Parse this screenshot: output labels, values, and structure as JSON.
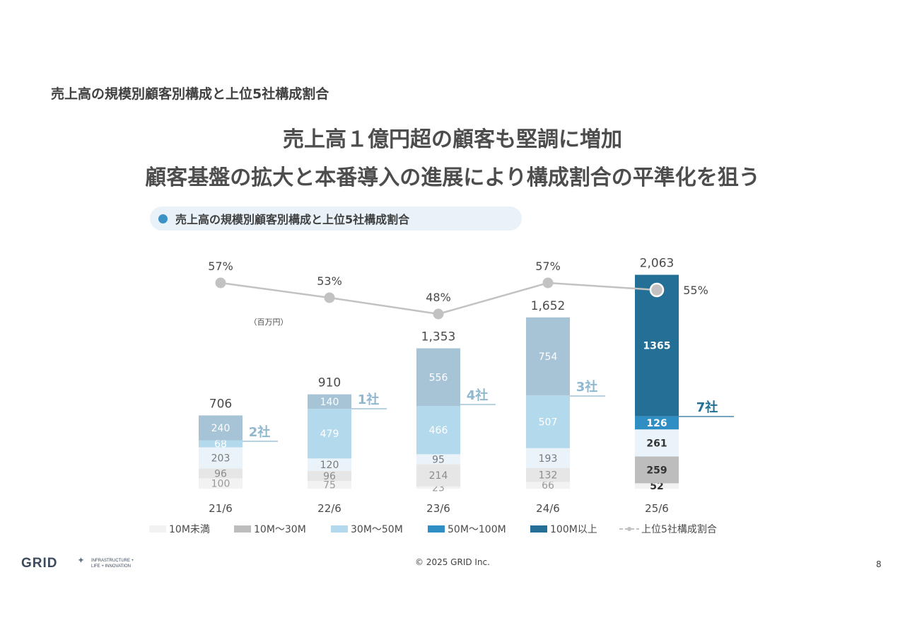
{
  "header": {
    "title": "売上高の規模別顧客別構成と上位5社構成割合"
  },
  "headline": {
    "line1": "売上高１億円超の顧客も堅調に増加",
    "line2": "顧客基盤の拡大と本番導入の進展により構成割合の平準化を狙う"
  },
  "section_pill": {
    "label": "売上高の規模別顧客別構成と上位5社構成割合"
  },
  "colors": {
    "under_10m": "#f2f2f2",
    "m10_30": "#bdbdbd",
    "m30_50": "#b3d9ec",
    "m50_100": "#2f8fc4",
    "over_100m": "#236f96",
    "top5_line": "#c2c2c2",
    "accent_text": "#8fb8cf",
    "accent_dark": "#236f96"
  },
  "chart_data": {
    "type": "bar",
    "stacked": true,
    "unit_label": "（百万円）",
    "categories": [
      "21/6",
      "22/6",
      "23/6",
      "24/6",
      "25/6"
    ],
    "series": [
      {
        "name": "10M未満",
        "values": [
          100,
          75,
          23,
          66,
          52
        ]
      },
      {
        "name": "10M～30M",
        "values": [
          96,
          96,
          214,
          132,
          259
        ]
      },
      {
        "name": "30M～50M",
        "values": [
          203,
          120,
          95,
          193,
          261
        ]
      },
      {
        "name": "50M～100M",
        "values": [
          68,
          479,
          466,
          507,
          126
        ]
      },
      {
        "name": "100M以上",
        "values": [
          240,
          140,
          556,
          754,
          1365
        ]
      }
    ],
    "totals": [
      "706",
      "910",
      "1,353",
      "1,652",
      "2,063"
    ],
    "over_100m_companies": [
      "2社",
      "1社",
      "4社",
      "3社",
      "7社"
    ],
    "line_series": {
      "name": "上位5社構成割合",
      "values": [
        57,
        53,
        48,
        57,
        55
      ],
      "labels": [
        "57%",
        "53%",
        "48%",
        "57%",
        "55%"
      ]
    },
    "legend_position": "bottom"
  },
  "footer": {
    "logo_text": "GRID",
    "logo_plus": "+",
    "logo_tag1": "INFRASTRUCTURE +",
    "logo_tag2": "LIFE + INNOVATION",
    "copyright": "© 2025 GRID Inc.",
    "page_number": "8"
  }
}
